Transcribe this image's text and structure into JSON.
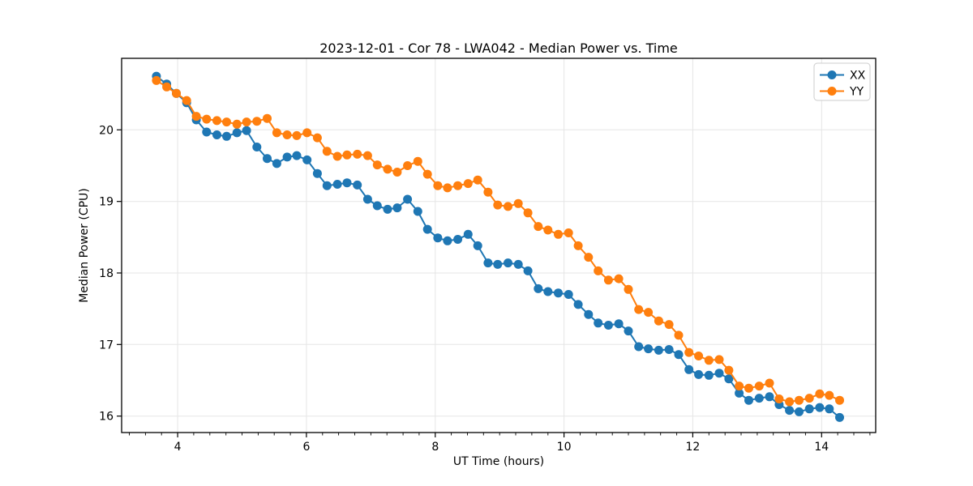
{
  "chart_data": {
    "type": "line",
    "title": "2023-12-01 - Cor 78 - LWA042 - Median Power vs. Time",
    "xlabel": "UT Time (hours)",
    "ylabel": "Median Power (CPU)",
    "xlim": [
      3.13,
      14.84
    ],
    "ylim": [
      15.77,
      21.0
    ],
    "x_ticks": [
      4,
      6,
      8,
      10,
      12,
      14
    ],
    "x_tick_labels": [
      "4",
      "6",
      "8",
      "10",
      "12",
      "14"
    ],
    "y_ticks": [
      16,
      17,
      18,
      19,
      20
    ],
    "y_tick_labels": [
      "16",
      "17",
      "18",
      "19",
      "20"
    ],
    "x_minor_tick_step": 0.25,
    "grid": true,
    "legend_position": "upper right",
    "background_color": "#ffffff",
    "grid_color": "#e5e5e5",
    "x": [
      3.67,
      3.83,
      3.98,
      4.14,
      4.29,
      4.45,
      4.61,
      4.76,
      4.92,
      5.07,
      5.23,
      5.39,
      5.54,
      5.7,
      5.85,
      6.01,
      6.17,
      6.32,
      6.48,
      6.63,
      6.79,
      6.95,
      7.1,
      7.26,
      7.41,
      7.57,
      7.73,
      7.88,
      8.04,
      8.19,
      8.35,
      8.51,
      8.66,
      8.82,
      8.97,
      9.13,
      9.29,
      9.44,
      9.6,
      9.75,
      9.91,
      10.07,
      10.22,
      10.38,
      10.53,
      10.69,
      10.85,
      11.0,
      11.16,
      11.31,
      11.47,
      11.63,
      11.78,
      11.94,
      12.09,
      12.25,
      12.41,
      12.56,
      12.72,
      12.87,
      13.03,
      13.19,
      13.34,
      13.5,
      13.65,
      13.81,
      13.97,
      14.12,
      14.28
    ],
    "series": [
      {
        "name": "XX",
        "color": "#1f77b4",
        "values": [
          20.75,
          20.64,
          20.51,
          20.38,
          20.14,
          19.97,
          19.93,
          19.91,
          19.96,
          19.99,
          19.76,
          19.6,
          19.53,
          19.62,
          19.64,
          19.58,
          19.39,
          19.22,
          19.24,
          19.26,
          19.23,
          19.03,
          18.94,
          18.89,
          18.91,
          19.03,
          18.86,
          18.61,
          18.49,
          18.45,
          18.47,
          18.54,
          18.38,
          18.14,
          18.12,
          18.14,
          18.12,
          18.03,
          17.78,
          17.74,
          17.72,
          17.7,
          17.56,
          17.42,
          17.3,
          17.27,
          17.29,
          17.19,
          16.97,
          16.94,
          16.92,
          16.93,
          16.86,
          16.65,
          16.58,
          16.57,
          16.6,
          16.52,
          16.32,
          16.22,
          16.25,
          16.27,
          16.16,
          16.08,
          16.06,
          16.1,
          16.12,
          16.1,
          15.98
        ]
      },
      {
        "name": "YY",
        "color": "#ff7f0e",
        "values": [
          20.69,
          20.6,
          20.51,
          20.41,
          20.19,
          20.15,
          20.13,
          20.11,
          20.08,
          20.11,
          20.12,
          20.16,
          19.96,
          19.93,
          19.92,
          19.96,
          19.89,
          19.7,
          19.63,
          19.65,
          19.66,
          19.64,
          19.51,
          19.45,
          19.41,
          19.5,
          19.56,
          19.38,
          19.22,
          19.19,
          19.22,
          19.25,
          19.3,
          19.13,
          18.95,
          18.93,
          18.97,
          18.84,
          18.65,
          18.6,
          18.54,
          18.56,
          18.38,
          18.22,
          18.03,
          17.9,
          17.92,
          17.77,
          17.49,
          17.45,
          17.33,
          17.28,
          17.13,
          16.89,
          16.84,
          16.78,
          16.79,
          16.64,
          16.42,
          16.39,
          16.42,
          16.46,
          16.24,
          16.2,
          16.22,
          16.25,
          16.31,
          16.29,
          16.22
        ]
      }
    ]
  }
}
